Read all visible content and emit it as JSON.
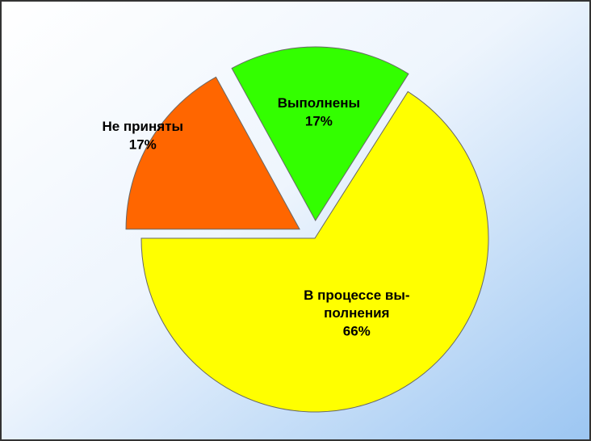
{
  "chart_data": {
    "type": "pie",
    "categories": [
      "Не приняты",
      "Выполнены",
      "В процессе вы-\nполнения"
    ],
    "values": [
      17,
      17,
      66
    ],
    "value_labels": [
      "17%",
      "17%",
      "66%"
    ],
    "colors": [
      "#ff6600",
      "#33ff00",
      "#ffff00"
    ]
  }
}
